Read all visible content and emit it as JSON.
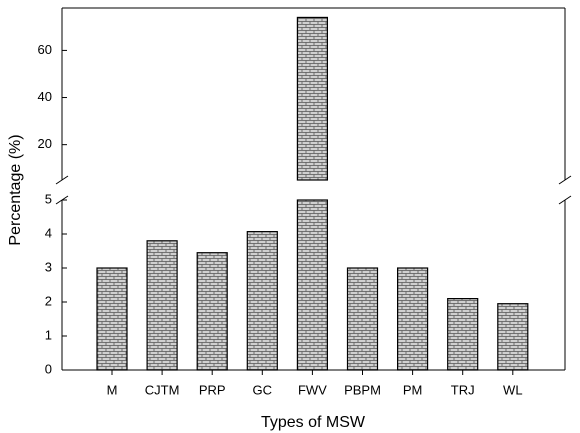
{
  "chart_data": {
    "type": "bar",
    "categories": [
      "M",
      "CJTM",
      "PRP",
      "GC",
      "FWV",
      "PBPM",
      "PM",
      "TRJ",
      "WL"
    ],
    "values": [
      3.0,
      3.8,
      3.45,
      4.07,
      74,
      3.0,
      3.0,
      2.1,
      1.95
    ],
    "color": "#c8c8c8",
    "xlabel": "Types of MSW",
    "ylabel": "Percentage (%)",
    "ylim": [
      0,
      5
    ],
    "yticks": [
      0,
      1,
      2,
      3,
      4,
      5
    ],
    "upper_ylim": [
      5,
      78
    ],
    "upper_yticks": [
      20,
      40,
      60
    ],
    "axis_break": true
  }
}
